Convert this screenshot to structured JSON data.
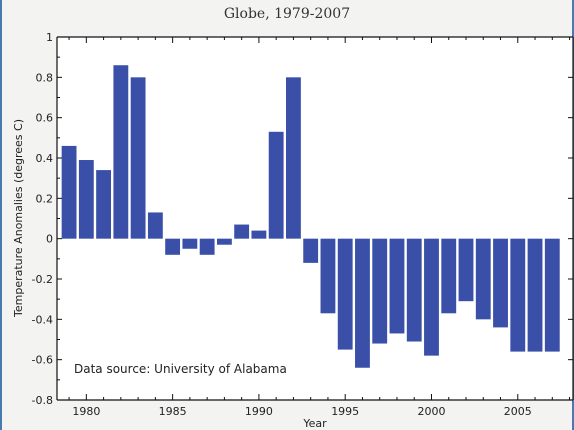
{
  "chart_data": {
    "type": "bar",
    "title": "Globe, 1979-2007",
    "xlabel": "Year",
    "ylabel": "Temperature Anomalies (degrees C)",
    "annotation": "Data source: University of Alabama",
    "bar_color": "#3a4fa8",
    "ylim": [
      -0.8,
      1.0
    ],
    "xlim": [
      1978.3,
      2008.2
    ],
    "y_ticks": [
      "-0.8",
      "-0.6",
      "-0.4",
      "-0.2",
      "0",
      "0.2",
      "0.4",
      "0.6",
      "0.8",
      "1"
    ],
    "x_ticks": [
      "1980",
      "1985",
      "1990",
      "1995",
      "2000",
      "2005"
    ],
    "grid": false,
    "categories": [
      1979,
      1980,
      1981,
      1982,
      1983,
      1984,
      1985,
      1986,
      1987,
      1988,
      1989,
      1990,
      1991,
      1992,
      1993,
      1994,
      1995,
      1996,
      1997,
      1998,
      1999,
      2000,
      2001,
      2002,
      2003,
      2004,
      2005,
      2006,
      2007
    ],
    "values": [
      0.46,
      0.39,
      0.34,
      0.86,
      0.8,
      0.13,
      -0.08,
      -0.05,
      -0.08,
      -0.03,
      0.07,
      0.04,
      0.53,
      0.8,
      -0.12,
      -0.37,
      -0.55,
      -0.64,
      -0.52,
      -0.47,
      -0.51,
      -0.58,
      -0.37,
      -0.31,
      -0.4,
      -0.44,
      -0.56,
      -0.56,
      -0.56
    ]
  }
}
